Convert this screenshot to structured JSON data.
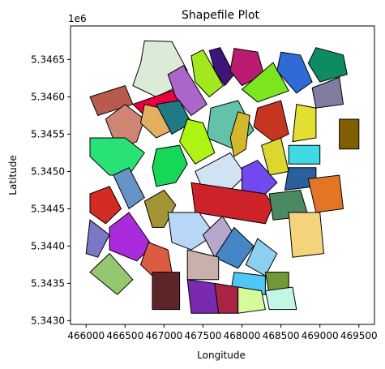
{
  "chart_data": {
    "type": "map",
    "title": "Shapefile Plot",
    "xlabel": "Longitude",
    "ylabel": "Latitude",
    "y_offset_label": "1e6",
    "xlim": [
      465800,
      469700
    ],
    "ylim": [
      5342950,
      5346950
    ],
    "x_ticks": [
      466000,
      466500,
      467000,
      467500,
      468000,
      468500,
      469000,
      469500
    ],
    "x_tick_labels": [
      "466000",
      "466500",
      "467000",
      "467500",
      "468000",
      "468500",
      "469000",
      "469500"
    ],
    "y_ticks": [
      5343000,
      5343500,
      5344000,
      5344500,
      5345000,
      5345500,
      5346000,
      5346500
    ],
    "y_tick_labels": [
      "5.3430",
      "5.3435",
      "5.3440",
      "5.3445",
      "5.3450",
      "5.3455",
      "5.3460",
      "5.3465"
    ],
    "grid": false,
    "edge_color": "#000000",
    "polygons": [
      {
        "color": "#b85a4e",
        "points": [
          [
            466050,
            5346000
          ],
          [
            466500,
            5346150
          ],
          [
            466600,
            5345900
          ],
          [
            466150,
            5345750
          ]
        ]
      },
      {
        "color": "#dcebd8",
        "points": [
          [
            466750,
            5346750
          ],
          [
            467100,
            5346740
          ],
          [
            467300,
            5346350
          ],
          [
            467100,
            5346100
          ],
          [
            466900,
            5346000
          ],
          [
            466600,
            5346150
          ],
          [
            466700,
            5346450
          ]
        ]
      },
      {
        "color": "#e8003f",
        "points": [
          [
            466600,
            5345900
          ],
          [
            467150,
            5346100
          ],
          [
            467300,
            5345900
          ],
          [
            466750,
            5345750
          ]
        ]
      },
      {
        "color": "#aa66c8",
        "points": [
          [
            467050,
            5346300
          ],
          [
            467250,
            5346420
          ],
          [
            467550,
            5345900
          ],
          [
            467350,
            5345750
          ],
          [
            467150,
            5346000
          ]
        ]
      },
      {
        "color": "#a3e81e",
        "points": [
          [
            467350,
            5346550
          ],
          [
            467500,
            5346630
          ],
          [
            467760,
            5346150
          ],
          [
            467580,
            5346000
          ],
          [
            467400,
            5346200
          ]
        ]
      },
      {
        "color": "#3c1578",
        "points": [
          [
            467580,
            5346620
          ],
          [
            467720,
            5346660
          ],
          [
            467900,
            5346300
          ],
          [
            467780,
            5346150
          ],
          [
            467650,
            5346350
          ]
        ]
      },
      {
        "color": "#ba1c6f",
        "points": [
          [
            467900,
            5346650
          ],
          [
            468200,
            5346600
          ],
          [
            468280,
            5346300
          ],
          [
            468000,
            5346150
          ],
          [
            467850,
            5346350
          ]
        ]
      },
      {
        "color": "#7ce522",
        "points": [
          [
            468000,
            5346100
          ],
          [
            468400,
            5346460
          ],
          [
            468600,
            5346080
          ],
          [
            468200,
            5345930
          ]
        ]
      },
      {
        "color": "#2f6bd6",
        "points": [
          [
            468500,
            5346600
          ],
          [
            468750,
            5346560
          ],
          [
            468900,
            5346200
          ],
          [
            468700,
            5346050
          ],
          [
            468450,
            5346350
          ]
        ]
      },
      {
        "color": "#0e8b63",
        "points": [
          [
            468950,
            5346660
          ],
          [
            469300,
            5346560
          ],
          [
            469350,
            5346300
          ],
          [
            469000,
            5346200
          ],
          [
            468850,
            5346450
          ]
        ]
      },
      {
        "color": "#7f7e9e",
        "points": [
          [
            468900,
            5346120
          ],
          [
            469250,
            5346260
          ],
          [
            469300,
            5345900
          ],
          [
            468950,
            5345850
          ]
        ]
      },
      {
        "color": "#7f5e00",
        "points": [
          [
            469250,
            5345700
          ],
          [
            469500,
            5345700
          ],
          [
            469500,
            5345300
          ],
          [
            469250,
            5345300
          ]
        ]
      },
      {
        "color": "#ce8573",
        "points": [
          [
            466250,
            5345700
          ],
          [
            466500,
            5345900
          ],
          [
            466750,
            5345700
          ],
          [
            466650,
            5345400
          ],
          [
            466400,
            5345300
          ]
        ]
      },
      {
        "color": "#e3b060",
        "points": [
          [
            466750,
            5345900
          ],
          [
            466950,
            5345850
          ],
          [
            467100,
            5345550
          ],
          [
            466900,
            5345450
          ],
          [
            466700,
            5345650
          ]
        ]
      },
      {
        "color": "#1f7a85",
        "points": [
          [
            466900,
            5345900
          ],
          [
            467200,
            5345950
          ],
          [
            467350,
            5345650
          ],
          [
            467100,
            5345500
          ]
        ]
      },
      {
        "color": "#62c2aa",
        "points": [
          [
            467600,
            5345850
          ],
          [
            467950,
            5345950
          ],
          [
            468150,
            5345550
          ],
          [
            467900,
            5345300
          ],
          [
            467550,
            5345450
          ]
        ]
      },
      {
        "color": "#c5351f",
        "points": [
          [
            468200,
            5345850
          ],
          [
            468500,
            5345950
          ],
          [
            468600,
            5345500
          ],
          [
            468400,
            5345400
          ],
          [
            468150,
            5345600
          ]
        ]
      },
      {
        "color": "#e3de32",
        "points": [
          [
            468700,
            5345900
          ],
          [
            468950,
            5345850
          ],
          [
            468950,
            5345450
          ],
          [
            468650,
            5345400
          ]
        ]
      },
      {
        "color": "#d3b92a",
        "points": [
          [
            467950,
            5345800
          ],
          [
            468100,
            5345750
          ],
          [
            468050,
            5345300
          ],
          [
            467900,
            5345200
          ],
          [
            467850,
            5345450
          ]
        ]
      },
      {
        "color": "#aef412",
        "points": [
          [
            467300,
            5345700
          ],
          [
            467500,
            5345650
          ],
          [
            467650,
            5345250
          ],
          [
            467400,
            5345100
          ],
          [
            467200,
            5345400
          ]
        ]
      },
      {
        "color": "#29e276",
        "points": [
          [
            466050,
            5345450
          ],
          [
            466500,
            5345450
          ],
          [
            466750,
            5345250
          ],
          [
            466550,
            5344950
          ],
          [
            466300,
            5344950
          ],
          [
            466050,
            5345200
          ]
        ]
      },
      {
        "color": "#16d856",
        "points": [
          [
            466900,
            5345300
          ],
          [
            467200,
            5345350
          ],
          [
            467300,
            5345100
          ],
          [
            467150,
            5344850
          ],
          [
            466900,
            5344800
          ],
          [
            466850,
            5345050
          ]
        ]
      },
      {
        "color": "#dbd72d",
        "points": [
          [
            468250,
            5345350
          ],
          [
            468500,
            5345450
          ],
          [
            468600,
            5345000
          ],
          [
            468350,
            5344950
          ]
        ]
      },
      {
        "color": "#40d8e5",
        "points": [
          [
            468600,
            5345350
          ],
          [
            469000,
            5345350
          ],
          [
            469000,
            5345100
          ],
          [
            468600,
            5345100
          ]
        ]
      },
      {
        "color": "#d0e2f3",
        "points": [
          [
            467400,
            5345000
          ],
          [
            467850,
            5345250
          ],
          [
            468050,
            5344950
          ],
          [
            467800,
            5344700
          ],
          [
            467500,
            5344750
          ]
        ]
      },
      {
        "color": "#7249ef",
        "points": [
          [
            468000,
            5345050
          ],
          [
            468200,
            5345150
          ],
          [
            468450,
            5344850
          ],
          [
            468250,
            5344650
          ],
          [
            468000,
            5344750
          ]
        ]
      },
      {
        "color": "#2c5f9d",
        "points": [
          [
            468600,
            5345050
          ],
          [
            468950,
            5345050
          ],
          [
            468950,
            5344800
          ],
          [
            468550,
            5344750
          ]
        ]
      },
      {
        "color": "#6694c6",
        "points": [
          [
            466350,
            5344950
          ],
          [
            466550,
            5345050
          ],
          [
            466750,
            5344650
          ],
          [
            466550,
            5344500
          ]
        ]
      },
      {
        "color": "#d32a21",
        "points": [
          [
            466050,
            5344700
          ],
          [
            466300,
            5344800
          ],
          [
            466450,
            5344500
          ],
          [
            466250,
            5344300
          ],
          [
            466050,
            5344450
          ]
        ]
      },
      {
        "color": "#cc2228",
        "points": [
          [
            467350,
            5344850
          ],
          [
            468300,
            5344700
          ],
          [
            468400,
            5344550
          ],
          [
            468300,
            5344300
          ],
          [
            467400,
            5344450
          ]
        ]
      },
      {
        "color": "#4a8962",
        "points": [
          [
            468350,
            5344700
          ],
          [
            468750,
            5344750
          ],
          [
            468850,
            5344400
          ],
          [
            468400,
            5344350
          ]
        ]
      },
      {
        "color": "#e27624",
        "points": [
          [
            468850,
            5344900
          ],
          [
            469250,
            5344950
          ],
          [
            469300,
            5344500
          ],
          [
            468950,
            5344450
          ]
        ]
      },
      {
        "color": "#a39434",
        "points": [
          [
            466750,
            5344600
          ],
          [
            467000,
            5344750
          ],
          [
            467150,
            5344550
          ],
          [
            467000,
            5344250
          ],
          [
            466850,
            5344250
          ]
        ]
      },
      {
        "color": "#b8d6f5",
        "points": [
          [
            467050,
            5344450
          ],
          [
            467450,
            5344450
          ],
          [
            467650,
            5344150
          ],
          [
            467350,
            5343950
          ],
          [
            467100,
            5344050
          ]
        ]
      },
      {
        "color": "#b8a6cc",
        "points": [
          [
            467500,
            5344150
          ],
          [
            467750,
            5344400
          ],
          [
            467900,
            5344150
          ],
          [
            467650,
            5343850
          ]
        ]
      },
      {
        "color": "#f5d37c",
        "points": [
          [
            468600,
            5344450
          ],
          [
            469000,
            5344450
          ],
          [
            469050,
            5343900
          ],
          [
            468650,
            5343850
          ]
        ]
      },
      {
        "color": "#7b77c5",
        "points": [
          [
            466050,
            5344350
          ],
          [
            466300,
            5344150
          ],
          [
            466150,
            5343850
          ],
          [
            466000,
            5343900
          ]
        ]
      },
      {
        "color": "#a92bdc",
        "points": [
          [
            466300,
            5344250
          ],
          [
            466550,
            5344450
          ],
          [
            466850,
            5344000
          ],
          [
            466650,
            5343800
          ],
          [
            466300,
            5343950
          ]
        ]
      },
      {
        "color": "#4486c6",
        "points": [
          [
            467650,
            5343850
          ],
          [
            467900,
            5344250
          ],
          [
            468150,
            5344000
          ],
          [
            467950,
            5343700
          ]
        ]
      },
      {
        "color": "#8bd0f1",
        "points": [
          [
            468050,
            5343750
          ],
          [
            468200,
            5344100
          ],
          [
            468450,
            5343900
          ],
          [
            468300,
            5343600
          ]
        ]
      },
      {
        "color": "#94c86f",
        "points": [
          [
            466050,
            5343650
          ],
          [
            466300,
            5343900
          ],
          [
            466600,
            5343550
          ],
          [
            466400,
            5343350
          ]
        ]
      },
      {
        "color": "#db5b43",
        "points": [
          [
            466800,
            5344050
          ],
          [
            467050,
            5343950
          ],
          [
            467100,
            5343650
          ],
          [
            466900,
            5343550
          ],
          [
            466700,
            5343750
          ]
        ]
      },
      {
        "color": "#c7b1aa",
        "points": [
          [
            467300,
            5343950
          ],
          [
            467700,
            5343850
          ],
          [
            467700,
            5343550
          ],
          [
            467300,
            5343550
          ]
        ]
      },
      {
        "color": "#4ec9f7",
        "points": [
          [
            467900,
            5343650
          ],
          [
            468300,
            5343600
          ],
          [
            468300,
            5343350
          ],
          [
            467850,
            5343350
          ]
        ]
      },
      {
        "color": "#729738",
        "points": [
          [
            468300,
            5343650
          ],
          [
            468600,
            5343650
          ],
          [
            468600,
            5343400
          ],
          [
            468350,
            5343350
          ]
        ]
      },
      {
        "color": "#5e2529",
        "points": [
          [
            466850,
            5343650
          ],
          [
            467200,
            5343650
          ],
          [
            467200,
            5343150
          ],
          [
            466850,
            5343150
          ]
        ]
      },
      {
        "color": "#7a2ab0",
        "points": [
          [
            467300,
            5343550
          ],
          [
            467650,
            5343500
          ],
          [
            467700,
            5343100
          ],
          [
            467350,
            5343100
          ]
        ]
      },
      {
        "color": "#a82643",
        "points": [
          [
            467650,
            5343500
          ],
          [
            467950,
            5343450
          ],
          [
            467950,
            5343100
          ],
          [
            467700,
            5343100
          ]
        ]
      },
      {
        "color": "#d6fb9d",
        "points": [
          [
            467950,
            5343450
          ],
          [
            468250,
            5343400
          ],
          [
            468300,
            5343150
          ],
          [
            467950,
            5343100
          ]
        ]
      },
      {
        "color": "#c3f6e6",
        "points": [
          [
            468300,
            5343400
          ],
          [
            468650,
            5343450
          ],
          [
            468700,
            5343150
          ],
          [
            468350,
            5343150
          ]
        ]
      }
    ]
  }
}
